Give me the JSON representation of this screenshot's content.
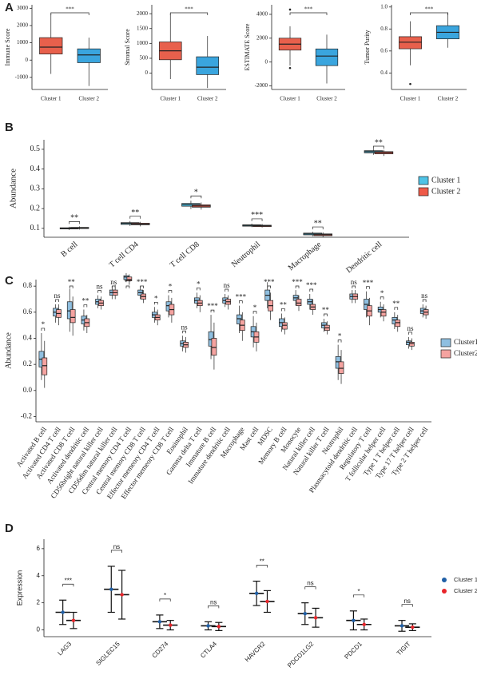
{
  "panel_labels": [
    "A",
    "B",
    "C",
    "D"
  ],
  "chart_data": [
    {
      "type": "box",
      "ylabel": "Immune Score",
      "categories": [
        "Cluster 1",
        "Cluster 2"
      ],
      "colors": [
        "#e8604c",
        "#3aa5de"
      ],
      "values": [
        [
          -800,
          350,
          750,
          1300,
          2700
        ],
        [
          -1500,
          -150,
          300,
          650,
          1300
        ]
      ],
      "outliers": [
        [],
        []
      ],
      "ylim": [
        -1700,
        3200
      ],
      "yticks": [
        -1000,
        0,
        1000,
        2000,
        3000
      ],
      "significance": [
        "***"
      ]
    },
    {
      "type": "box",
      "ylabel": "Stromal Score",
      "categories": [
        "Cluster 1",
        "Cluster 2"
      ],
      "colors": [
        "#e8604c",
        "#3aa5de"
      ],
      "values": [
        [
          -200,
          450,
          750,
          1050,
          2000
        ],
        [
          -500,
          -50,
          200,
          550,
          1250
        ]
      ],
      "outliers": [
        [],
        []
      ],
      "ylim": [
        -550,
        2300
      ],
      "yticks": [
        0,
        500,
        1000,
        1500,
        2000
      ],
      "significance": [
        "***"
      ]
    },
    {
      "type": "box",
      "ylabel": "ESTIMATE Score",
      "categories": [
        "Cluster 1",
        "Cluster 2"
      ],
      "colors": [
        "#e8604c",
        "#3aa5de"
      ],
      "values": [
        [
          -300,
          1000,
          1500,
          2000,
          3000
        ],
        [
          -1800,
          -300,
          500,
          1100,
          2300
        ]
      ],
      "outliers": [
        [
          4400,
          -500
        ],
        []
      ],
      "ylim": [
        -2300,
        4800
      ],
      "yticks": [
        -2000,
        0,
        2000,
        4000
      ],
      "significance": [
        "***"
      ]
    },
    {
      "type": "box",
      "ylabel": "Tumor Purity",
      "categories": [
        "Cluster 1",
        "Cluster 2"
      ],
      "colors": [
        "#e8604c",
        "#3aa5de"
      ],
      "values": [
        [
          0.47,
          0.62,
          0.68,
          0.73,
          0.87
        ],
        [
          0.63,
          0.71,
          0.77,
          0.83,
          0.95
        ]
      ],
      "outliers": [
        [
          0.3
        ],
        []
      ],
      "ylim": [
        0.25,
        1.02
      ],
      "yticks": [
        0.4,
        0.6,
        0.8,
        {
          "value": 1,
          "label": "1.0"
        }
      ],
      "significance": [
        "***"
      ]
    },
    {
      "type": "box",
      "ylabel": "Abundance",
      "legend": "right",
      "categories": [
        "B cell",
        "T cell CD4",
        "T cell CD8",
        "Neutrophil",
        "Macrophage",
        "Dendritic cell"
      ],
      "series": [
        {
          "name": "Cluster 1",
          "color": "#4fc3e6",
          "values": [
            [
              0.092,
              0.097,
              0.1,
              0.103,
              0.108
            ],
            [
              0.112,
              0.12,
              0.125,
              0.129,
              0.137
            ],
            [
              0.198,
              0.212,
              0.22,
              0.226,
              0.24
            ],
            [
              0.106,
              0.111,
              0.115,
              0.118,
              0.124
            ],
            [
              0.06,
              0.067,
              0.072,
              0.076,
              0.083
            ],
            [
              0.472,
              0.482,
              0.488,
              0.493,
              0.502
            ]
          ]
        },
        {
          "name": "Cluster 2",
          "color": "#ef5a48",
          "values": [
            [
              0.094,
              0.099,
              0.102,
              0.105,
              0.11
            ],
            [
              0.11,
              0.118,
              0.122,
              0.126,
              0.133
            ],
            [
              0.195,
              0.207,
              0.213,
              0.219,
              0.231
            ],
            [
              0.104,
              0.109,
              0.113,
              0.116,
              0.122
            ],
            [
              0.055,
              0.063,
              0.068,
              0.072,
              0.08
            ],
            [
              0.466,
              0.477,
              0.483,
              0.488,
              0.497
            ]
          ]
        }
      ],
      "ylim": [
        0.055,
        0.548
      ],
      "yticks": [
        0.1,
        0.2,
        0.3,
        0.4,
        0.5
      ],
      "significance": [
        "**",
        "**",
        "*",
        "***",
        "**",
        "**"
      ]
    },
    {
      "type": "box",
      "ylabel": "Abundance",
      "legend": "right",
      "categories": [
        "Activated B cell",
        "Activated CD4 T cell",
        "Activated CD8 T cell",
        "Activated dendritic cell",
        "CD56bright natural killer cell",
        "CD56dim natural killer cell",
        "Central memory CD4 T cell",
        "Central memory CD8 T cell",
        "Effector memeory CD4 T cell",
        "Effector memeory CD8 T cell",
        "Eosinophil",
        "Gamma delta T cell",
        "Immature B cell",
        "Immature dendritic cell",
        "Macrophage",
        "Mast cell",
        "MDSC",
        "Memory B cell",
        "Monocyte",
        "Natural killer cell",
        "Natural killer T cell",
        "Neutrophil",
        "Plasmacytoid dendritic cell",
        "Regulatory T cell",
        "T follicular helper cell",
        "Type 1 T helper cell",
        "Type 17 T helper cell",
        "Type 2 T helper cell"
      ],
      "series": [
        {
          "name": "Cluster1",
          "color": "#8fbfe0",
          "values": [
            [
              0.08,
              0.18,
              0.24,
              0.3,
              0.44
            ],
            [
              0.52,
              0.57,
              0.6,
              0.63,
              0.66
            ],
            [
              0.45,
              0.55,
              0.61,
              0.68,
              0.78
            ],
            [
              0.46,
              0.51,
              0.54,
              0.57,
              0.62
            ],
            [
              0.63,
              0.66,
              0.68,
              0.7,
              0.73
            ],
            [
              0.7,
              0.73,
              0.75,
              0.77,
              0.8
            ],
            [
              0.83,
              0.85,
              0.87,
              0.88,
              0.9
            ],
            [
              0.7,
              0.73,
              0.75,
              0.77,
              0.8
            ],
            [
              0.52,
              0.56,
              0.58,
              0.6,
              0.64
            ],
            [
              0.56,
              0.61,
              0.65,
              0.68,
              0.73
            ],
            [
              0.3,
              0.34,
              0.36,
              0.38,
              0.42
            ],
            [
              0.63,
              0.67,
              0.69,
              0.71,
              0.75
            ],
            [
              0.24,
              0.34,
              0.39,
              0.45,
              0.58
            ],
            [
              0.64,
              0.67,
              0.69,
              0.71,
              0.74
            ],
            [
              0.44,
              0.51,
              0.55,
              0.58,
              0.65
            ],
            [
              0.33,
              0.41,
              0.45,
              0.49,
              0.57
            ],
            [
              0.63,
              0.69,
              0.73,
              0.77,
              0.83
            ],
            [
              0.45,
              0.49,
              0.52,
              0.55,
              0.59
            ],
            [
              0.65,
              0.69,
              0.71,
              0.73,
              0.77
            ],
            [
              0.62,
              0.66,
              0.68,
              0.7,
              0.74
            ],
            [
              0.45,
              0.48,
              0.5,
              0.52,
              0.55
            ],
            [
              0.08,
              0.17,
              0.22,
              0.26,
              0.35
            ],
            [
              0.67,
              0.7,
              0.72,
              0.74,
              0.77
            ],
            [
              0.56,
              0.62,
              0.66,
              0.7,
              0.76
            ],
            [
              0.56,
              0.6,
              0.62,
              0.64,
              0.68
            ],
            [
              0.47,
              0.51,
              0.54,
              0.56,
              0.6
            ],
            [
              0.32,
              0.35,
              0.37,
              0.38,
              0.41
            ],
            [
              0.56,
              0.59,
              0.61,
              0.63,
              0.66
            ]
          ]
        },
        {
          "name": "Cluster2",
          "color": "#f5a3a0",
          "values": [
            [
              0.02,
              0.12,
              0.19,
              0.25,
              0.38
            ],
            [
              0.5,
              0.56,
              0.59,
              0.62,
              0.66
            ],
            [
              0.42,
              0.52,
              0.56,
              0.62,
              0.72
            ],
            [
              0.44,
              0.49,
              0.52,
              0.55,
              0.58
            ],
            [
              0.62,
              0.65,
              0.67,
              0.69,
              0.72
            ],
            [
              0.7,
              0.73,
              0.75,
              0.77,
              0.81
            ],
            [
              0.81,
              0.84,
              0.85,
              0.87,
              0.89
            ],
            [
              0.67,
              0.7,
              0.72,
              0.74,
              0.77
            ],
            [
              0.5,
              0.54,
              0.56,
              0.58,
              0.62
            ],
            [
              0.52,
              0.58,
              0.62,
              0.66,
              0.71
            ],
            [
              0.29,
              0.33,
              0.35,
              0.37,
              0.41
            ],
            [
              0.6,
              0.65,
              0.67,
              0.69,
              0.73
            ],
            [
              0.16,
              0.27,
              0.33,
              0.4,
              0.52
            ],
            [
              0.62,
              0.66,
              0.68,
              0.7,
              0.73
            ],
            [
              0.38,
              0.46,
              0.5,
              0.54,
              0.6
            ],
            [
              0.3,
              0.37,
              0.41,
              0.45,
              0.52
            ],
            [
              0.54,
              0.61,
              0.65,
              0.69,
              0.75
            ],
            [
              0.43,
              0.47,
              0.5,
              0.52,
              0.56
            ],
            [
              0.61,
              0.65,
              0.67,
              0.7,
              0.73
            ],
            [
              0.58,
              0.62,
              0.64,
              0.66,
              0.7
            ],
            [
              0.43,
              0.46,
              0.48,
              0.5,
              0.53
            ],
            [
              0.05,
              0.13,
              0.17,
              0.22,
              0.31
            ],
            [
              0.67,
              0.7,
              0.72,
              0.74,
              0.77
            ],
            [
              0.5,
              0.57,
              0.61,
              0.65,
              0.71
            ],
            [
              0.53,
              0.57,
              0.6,
              0.62,
              0.66
            ],
            [
              0.45,
              0.49,
              0.52,
              0.54,
              0.58
            ],
            [
              0.31,
              0.34,
              0.36,
              0.37,
              0.4
            ],
            [
              0.55,
              0.58,
              0.6,
              0.62,
              0.65
            ]
          ]
        }
      ],
      "ylim": [
        -0.24,
        0.85
      ],
      "yticks": [
        -0.2,
        {
          "value": 0,
          "label": "0.0"
        },
        0.2,
        0.4,
        0.6,
        0.8
      ],
      "significance": [
        "*",
        "ns",
        "**",
        "**",
        "ns",
        "ns",
        "**",
        "***",
        "*",
        "*",
        "ns",
        "*",
        "***",
        "ns",
        "***",
        "*",
        "***",
        "**",
        "***",
        "***",
        "**",
        "*",
        "ns",
        "***",
        "*",
        "**",
        "ns",
        "ns"
      ]
    },
    {
      "type": "errorbar",
      "ylabel": "Expression",
      "legend": "right",
      "categories": [
        "LAG3",
        "SIGLEC15",
        "CD274",
        "CTLA4",
        "HAVCR2",
        "PDCD1LG2",
        "PDCD1",
        "TIGIT"
      ],
      "series": [
        {
          "name": "Cluster 1",
          "color": "#1f5fa6",
          "values": [
            1.3,
            3.0,
            0.6,
            0.3,
            2.7,
            1.2,
            0.7,
            0.3
          ],
          "errors": [
            0.9,
            1.7,
            0.5,
            0.3,
            0.9,
            0.8,
            0.7,
            0.4
          ]
        },
        {
          "name": "Cluster 2",
          "color": "#e8252a",
          "values": [
            0.7,
            2.6,
            0.35,
            0.25,
            2.1,
            0.9,
            0.4,
            0.2
          ],
          "errors": [
            0.6,
            1.8,
            0.35,
            0.3,
            0.8,
            0.7,
            0.4,
            0.25
          ]
        }
      ],
      "ylim": [
        -0.5,
        6.7
      ],
      "yticks": [
        0,
        2,
        4,
        6
      ],
      "significance": [
        "***",
        "ns",
        "*",
        "ns",
        "**",
        "ns",
        "*",
        "ns"
      ]
    }
  ]
}
